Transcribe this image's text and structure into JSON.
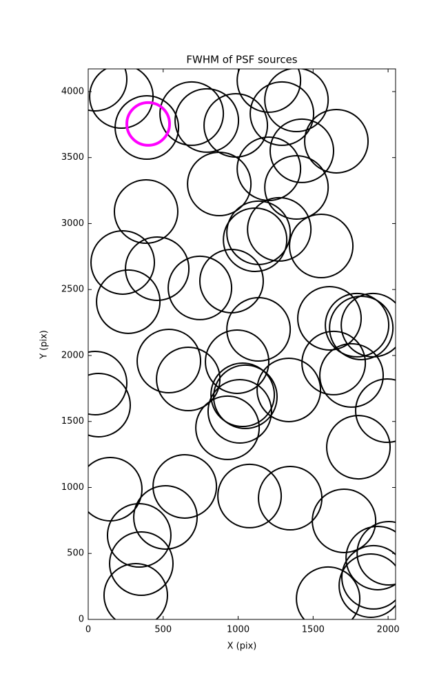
{
  "chart_data": {
    "type": "scatter",
    "title": "FWHM of PSF sources",
    "x_label": "X (pix)",
    "y_label": "Y (pix)",
    "xlim": [
      0,
      2050
    ],
    "ylim": [
      0,
      4172
    ],
    "xticks": [
      0,
      500,
      1000,
      1500,
      2000
    ],
    "yticks": [
      0,
      500,
      1000,
      1500,
      2000,
      2500,
      3000,
      3500,
      4000
    ],
    "series": [
      {
        "color": "#000000",
        "x": [
          46,
          221,
          391,
          1205,
          1389,
          1292,
          984,
          791,
          690,
          1655,
          1425,
          1205,
          1389,
          874,
          386,
          1274,
          1136,
          1113,
          1554,
          230,
          460,
          745,
          956,
          267,
          1136,
          1609,
          1793,
          1899,
          1821,
          538,
          993,
          1637,
          46,
          1756,
          667,
          69,
          1338,
          1030,
          1048,
          1011,
          1995,
          929,
          1802,
          147,
          644,
          1076,
          1347,
          515,
          1706,
          340,
          2005,
          1931,
          354,
          1903,
          1885,
          317,
          1600
        ],
        "values": [
          4094,
          3963,
          3728,
          4084,
          3937,
          3833,
          3744,
          3781,
          3833,
          3624,
          3551,
          3415,
          3274,
          3300,
          3091,
          2956,
          2930,
          2877,
          2830,
          2705,
          2658,
          2512,
          2564,
          2408,
          2198,
          2282,
          2230,
          2230,
          2209,
          1958,
          1953,
          1943,
          1791,
          1849,
          1822,
          1624,
          1739,
          1702,
          1687,
          1577,
          1582,
          1452,
          1305,
          987,
          1008,
          935,
          919,
          773,
          747,
          637,
          501,
          465,
          423,
          319,
          256,
          183,
          157
        ]
      },
      {
        "color": "#ff00ff",
        "x": [
          400
        ],
        "values": [
          3755
        ]
      }
    ]
  }
}
